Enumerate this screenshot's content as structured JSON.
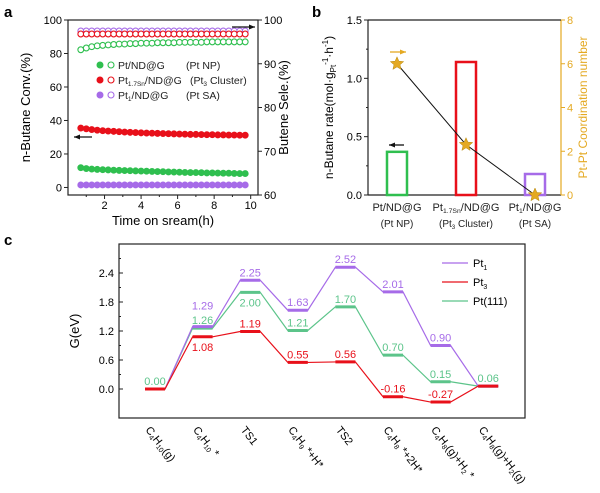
{
  "colors": {
    "green": "#2fbf4f",
    "red": "#e8101a",
    "purple": "#a66be8",
    "gold": "#e4a922",
    "teal_green": "#5cc48a",
    "axis": "#222222"
  },
  "chart_data": [
    {
      "panel_label": "a",
      "type": "scatter",
      "xlabel": "Time on sream(h)",
      "ylabel": "n-Butane Conv.(%)",
      "y2label": "Butene Sele.(%)",
      "xlim": [
        0,
        10.4
      ],
      "ylim": [
        -4.5,
        100
      ],
      "y2lim": [
        60,
        100
      ],
      "xticks": [
        2,
        4,
        6,
        8,
        10
      ],
      "yticks": [
        0,
        20,
        40,
        60,
        80,
        100
      ],
      "y2ticks": [
        60,
        70,
        80,
        90,
        100
      ],
      "legend": [
        {
          "main": "Pt",
          "sub": "",
          "rest": "/ND@G",
          "tag": "(Pt NP)",
          "tag_sub": "",
          "tag_rest": "",
          "color": "green"
        },
        {
          "main": "Pt",
          "sub": "1.7Sn",
          "rest": "/ND@G",
          "tag": "(Pt",
          "tag_sub": "3",
          "tag_rest": " Cluster)",
          "color": "red"
        },
        {
          "main": "Pt",
          "sub": "1",
          "rest": "/ND@G",
          "tag": "(Pt SA)",
          "tag_sub": "",
          "tag_rest": "",
          "color": "purple"
        }
      ],
      "legend_placement": "center-left",
      "x": [
        0.7,
        1.0,
        1.3,
        1.6,
        1.9,
        2.2,
        2.5,
        2.8,
        3.1,
        3.4,
        3.7,
        4.0,
        4.3,
        4.6,
        4.9,
        5.2,
        5.5,
        5.8,
        6.1,
        6.4,
        6.7,
        7.0,
        7.3,
        7.6,
        7.9,
        8.2,
        8.5,
        8.8,
        9.1,
        9.4,
        9.7
      ],
      "series": [
        {
          "name": "Pt/ND@G (Pt NP)",
          "axis": "left",
          "fill": "filled",
          "color": "green",
          "values": [
            11.8,
            11.3,
            11.0,
            10.8,
            10.6,
            10.5,
            10.3,
            10.2,
            10.1,
            10.0,
            9.9,
            9.8,
            9.7,
            9.6,
            9.5,
            9.4,
            9.3,
            9.2,
            9.1,
            9.0,
            8.9,
            8.9,
            8.8,
            8.7,
            8.7,
            8.6,
            8.5,
            8.5,
            8.4,
            8.3,
            8.3
          ]
        },
        {
          "name": "Pt1.7Sn/ND@G (Pt3 Cluster)",
          "axis": "left",
          "fill": "filled",
          "color": "red",
          "values": [
            35.5,
            35.0,
            34.6,
            34.2,
            33.9,
            33.7,
            33.5,
            33.3,
            33.1,
            32.9,
            32.8,
            32.6,
            32.5,
            32.4,
            32.3,
            32.2,
            32.1,
            32.0,
            31.9,
            31.8,
            31.7,
            31.7,
            31.6,
            31.5,
            31.5,
            31.4,
            31.4,
            31.3,
            31.3,
            31.2,
            31.2
          ]
        },
        {
          "name": "Pt1/ND@G (Pt SA)",
          "axis": "left",
          "fill": "filled",
          "color": "purple",
          "values": [
            1.5,
            1.5,
            1.5,
            1.5,
            1.5,
            1.5,
            1.5,
            1.5,
            1.5,
            1.5,
            1.5,
            1.5,
            1.5,
            1.5,
            1.5,
            1.5,
            1.5,
            1.5,
            1.5,
            1.5,
            1.5,
            1.5,
            1.5,
            1.5,
            1.5,
            1.5,
            1.5,
            1.5,
            1.5,
            1.5,
            1.5
          ]
        },
        {
          "name": "Pt1/ND@G (Pt SA)",
          "axis": "right",
          "fill": "open",
          "color": "purple",
          "values": [
            97.5,
            97.5,
            97.5,
            97.5,
            97.5,
            97.5,
            97.5,
            97.5,
            97.5,
            97.5,
            97.5,
            97.5,
            97.5,
            97.5,
            97.5,
            97.5,
            97.5,
            97.5,
            97.5,
            97.5,
            97.5,
            97.5,
            97.5,
            97.5,
            97.5,
            97.5,
            97.5,
            97.5,
            97.5,
            97.5,
            97.5
          ]
        },
        {
          "name": "Pt1.7Sn/ND@G (Pt3 Cluster)",
          "axis": "right",
          "fill": "open",
          "color": "red",
          "values": [
            96.8,
            96.8,
            96.8,
            96.8,
            96.8,
            96.8,
            96.8,
            96.8,
            96.8,
            96.8,
            96.8,
            96.8,
            96.8,
            96.8,
            96.8,
            96.8,
            96.8,
            96.8,
            96.8,
            96.8,
            96.8,
            96.8,
            96.8,
            96.8,
            96.8,
            96.8,
            96.8,
            96.8,
            96.8,
            96.8,
            96.8
          ]
        },
        {
          "name": "Pt/ND@G (Pt NP)",
          "axis": "right",
          "fill": "open",
          "color": "green",
          "values": [
            93.2,
            93.6,
            93.9,
            94.1,
            94.2,
            94.3,
            94.4,
            94.5,
            94.5,
            94.6,
            94.6,
            94.7,
            94.7,
            94.7,
            94.8,
            94.8,
            94.8,
            94.8,
            94.9,
            94.9,
            94.9,
            94.9,
            94.9,
            95.0,
            95.0,
            95.0,
            95.0,
            95.0,
            95.0,
            95.0,
            95.0
          ]
        }
      ]
    },
    {
      "panel_label": "b",
      "type": "bar",
      "ylabel": "n-Butane rate(mol·g",
      "ylabel_sub": "Pt",
      "ylabel_sup1": "-1",
      "ylabel_mid": "·h",
      "ylabel_sup2": "-1",
      "ylabel_end": ")",
      "y2label": "Pt-Pt Coordination number",
      "ylim": [
        0,
        1.5
      ],
      "y2lim": [
        0,
        8
      ],
      "yticks": [
        "0.0",
        "0.5",
        "1.0",
        "1.5"
      ],
      "y2ticks": [
        0,
        2,
        4,
        6,
        8
      ],
      "categories": [
        {
          "main": "Pt",
          "sub": "",
          "rest": "/ND@G",
          "tag": "(Pt NP)",
          "tag_sub": "",
          "tag_rest": ""
        },
        {
          "main": "Pt",
          "sub": "1.7Sn",
          "rest": "/ND@G",
          "tag": "(Pt",
          "tag_sub": "3",
          "tag_rest": " Cluster)"
        },
        {
          "main": "Pt",
          "sub": "1",
          "rest": "/ND@G",
          "tag": "(Pt SA)",
          "tag_sub": "",
          "tag_rest": ""
        }
      ],
      "bar_values": [
        0.37,
        1.14,
        0.18
      ],
      "bar_colors": [
        "green",
        "red",
        "purple"
      ],
      "coordination_number": [
        6.0,
        2.3,
        0.0
      ],
      "marker": "star"
    },
    {
      "panel_label": "c",
      "type": "line",
      "ylabel": "G(eV)",
      "ylim": [
        -0.6,
        3.0
      ],
      "yticks": [
        "0.0",
        "0.6",
        "1.2",
        "1.8",
        "2.4"
      ],
      "categories": [
        "C4H10(g)",
        "C4H10 *",
        "TS1",
        "C4H9 *+H*",
        "TS2",
        "C4H8 *+2H*",
        "C4H8(g)+H2 *",
        "C4H8(g)+H2(g)"
      ],
      "legend_placement": "top-right",
      "series": [
        {
          "name": "Pt",
          "name_sub": "1",
          "color": "purple",
          "values": [
            0.0,
            1.29,
            2.25,
            1.63,
            2.52,
            2.01,
            0.9,
            0.06
          ],
          "labels": [
            "",
            "1.29",
            "2.25",
            "1.63",
            "2.52",
            "2.01",
            "0.90",
            ""
          ]
        },
        {
          "name": "Pt",
          "name_sub": "3",
          "color": "red",
          "values": [
            0.0,
            1.08,
            1.19,
            0.55,
            0.56,
            -0.16,
            -0.27,
            0.06
          ],
          "labels": [
            "",
            "1.08",
            "1.19",
            "0.55",
            "0.56",
            "-0.16",
            "-0.27",
            ""
          ]
        },
        {
          "name": "Pt(111)",
          "name_sub": "",
          "color": "teal_green",
          "values": [
            0.0,
            1.26,
            2.0,
            1.21,
            1.7,
            0.7,
            0.15,
            0.06
          ],
          "labels": [
            "0.00",
            "1.26",
            "2.00",
            "1.21",
            "1.70",
            "0.70",
            "0.15",
            "0.06"
          ]
        }
      ]
    }
  ]
}
